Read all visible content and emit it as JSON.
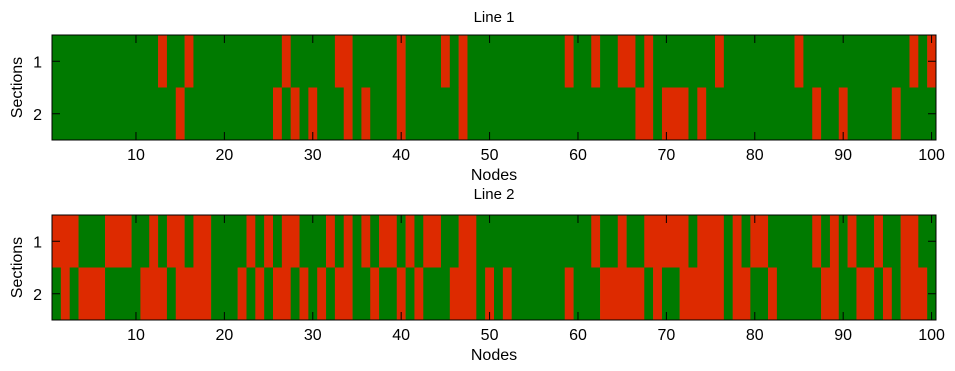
{
  "colors": {
    "ok": "#007a00",
    "fault": "#dd2a00",
    "axis": "#000000",
    "background": "#ffffff"
  },
  "chart_data": [
    {
      "type": "heatmap",
      "title": "Line 1",
      "xlabel": "Nodes",
      "ylabel": "Sections",
      "x_ticks": [
        10,
        20,
        30,
        40,
        50,
        60,
        70,
        80,
        90,
        100
      ],
      "y_ticks": [
        1,
        2
      ],
      "xlim": [
        0.5,
        100.5
      ],
      "ylim": [
        0.5,
        2.5
      ],
      "grid": false,
      "cell_values": "1 = red (fault), 0 = green",
      "rows": [
        {
          "section": 1,
          "red_nodes": [
            13,
            16,
            27,
            33,
            34,
            40,
            45,
            47,
            59,
            62,
            65,
            66,
            68,
            76,
            85,
            98,
            100
          ]
        },
        {
          "section": 2,
          "red_nodes": [
            15,
            26,
            28,
            30,
            34,
            36,
            40,
            47,
            67,
            68,
            70,
            71,
            72,
            74,
            87,
            90,
            96
          ]
        }
      ]
    },
    {
      "type": "heatmap",
      "title": "Line 2",
      "xlabel": "Nodes",
      "ylabel": "Sections",
      "x_ticks": [
        10,
        20,
        30,
        40,
        50,
        60,
        70,
        80,
        90,
        100
      ],
      "y_ticks": [
        1,
        2
      ],
      "xlim": [
        0.5,
        100.5
      ],
      "ylim": [
        0.5,
        2.5
      ],
      "grid": false,
      "cell_values": "1 = red (fault), 0 = green",
      "rows": [
        {
          "section": 1,
          "red_nodes": [
            1,
            2,
            3,
            7,
            8,
            9,
            12,
            14,
            15,
            17,
            18,
            23,
            25,
            27,
            28,
            32,
            34,
            36,
            38,
            39,
            41,
            43,
            44,
            47,
            48,
            62,
            65,
            68,
            69,
            70,
            71,
            72,
            74,
            75,
            76,
            78,
            80,
            81,
            87,
            89,
            91,
            94,
            97,
            98
          ]
        },
        {
          "section": 2,
          "red_nodes": [
            2,
            4,
            5,
            6,
            11,
            12,
            13,
            15,
            16,
            17,
            18,
            22,
            24,
            26,
            27,
            29,
            31,
            33,
            34,
            37,
            40,
            42,
            46,
            47,
            48,
            50,
            52,
            59,
            63,
            64,
            65,
            66,
            67,
            69,
            72,
            73,
            74,
            75,
            76,
            78,
            79,
            82,
            88,
            89,
            92,
            93,
            95,
            97,
            98,
            99
          ]
        }
      ]
    }
  ]
}
